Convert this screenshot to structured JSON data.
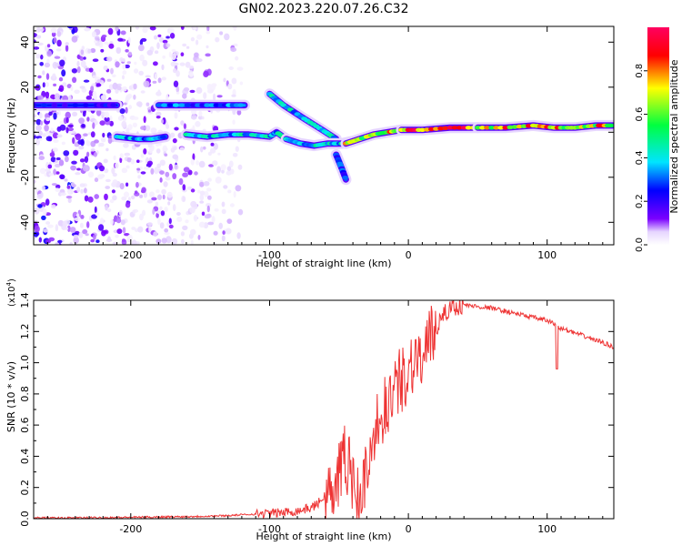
{
  "title": "GN02.2023.220.07.26.C32",
  "chart_data": [
    {
      "type": "heatmap",
      "xlabel": "Height of straight line (km)",
      "ylabel": "Frequency (Hz)",
      "xlim": [
        -270,
        148
      ],
      "ylim": [
        -50,
        47
      ],
      "xticks": [
        -200,
        -100,
        0,
        100
      ],
      "yticks": [
        -40,
        -20,
        0,
        20,
        40
      ],
      "colorbar": {
        "label": "Normalized spectral amplitude",
        "range": [
          0.0,
          1.0
        ],
        "ticks": [
          "0.0",
          "0.2",
          "0.4",
          "0.6",
          "0.8"
        ],
        "colormap": [
          "#ffffff",
          "#e6d5ff",
          "#7a00ff",
          "#0000ff",
          "#00e5ff",
          "#00ff40",
          "#ffff00",
          "#ff0000",
          "#ff0060"
        ]
      },
      "noise_region": {
        "x": [
          -270,
          -120
        ],
        "level": 0.15
      },
      "tracks": [
        {
          "x": [
            -270,
            -225,
            -210
          ],
          "y": [
            12,
            12,
            12
          ],
          "amplitude": 0.25
        },
        {
          "x": [
            -180,
            -155,
            -135,
            -118
          ],
          "y": [
            12,
            12,
            12,
            12
          ],
          "amplitude": 0.35
        },
        {
          "x": [
            -100,
            -90,
            -75,
            -62,
            -52
          ],
          "y": [
            17,
            12,
            6,
            1,
            -3
          ],
          "amplitude": 0.45
        },
        {
          "x": [
            -210,
            -195,
            -185,
            -175
          ],
          "y": [
            -2,
            -3,
            -3,
            -2
          ],
          "amplitude": 0.4
        },
        {
          "x": [
            -160,
            -145,
            -130,
            -115,
            -100,
            -95,
            -88
          ],
          "y": [
            -1,
            -2,
            -1,
            -1,
            -2,
            0,
            -3
          ],
          "amplitude": 0.45
        },
        {
          "x": [
            -88,
            -78,
            -68,
            -58,
            -48,
            -40
          ],
          "y": [
            -3,
            -5,
            -6,
            -5,
            -5,
            -4
          ],
          "amplitude": 0.45
        },
        {
          "x": [
            -52,
            -48,
            -45
          ],
          "y": [
            -10,
            -16,
            -21
          ],
          "amplitude": 0.3
        },
        {
          "x": [
            -45,
            -35,
            -25,
            -15,
            -5
          ],
          "y": [
            -5,
            -3,
            -1,
            0,
            1
          ],
          "amplitude": 0.8
        },
        {
          "x": [
            -5,
            10,
            30,
            50
          ],
          "y": [
            1,
            1,
            2,
            2
          ],
          "amplitude": 0.95
        },
        {
          "x": [
            50,
            70,
            90,
            105,
            120,
            135,
            148
          ],
          "y": [
            2,
            2,
            3,
            2,
            2,
            3,
            3
          ],
          "amplitude": 0.85
        }
      ]
    },
    {
      "type": "line",
      "xlabel": "Height of straight line (km)",
      "ylabel": "SNR (10 * v/v)",
      "multiplier": "(x10",
      "multiplier_exp": "4",
      "xlim": [
        -270,
        148
      ],
      "ylim": [
        0.0,
        1.4
      ],
      "xticks": [
        -200,
        -100,
        0,
        100
      ],
      "yticks": [
        0.0,
        0.2,
        0.4,
        0.6,
        0.8,
        1.0,
        1.2,
        1.4
      ],
      "ytick_labels": [
        "0.0",
        "0.2",
        "0.4",
        "0.6",
        "0.8",
        "1.0",
        "1.2",
        "1.4"
      ],
      "color": "#ee3333",
      "series": [
        {
          "x": [
            -270,
            -250,
            -230,
            -210,
            -190,
            -170,
            -150,
            -130,
            -120,
            -110,
            -100,
            -90,
            -80,
            -70,
            -65,
            -60,
            -55,
            -50,
            -45,
            -40,
            -35,
            -30,
            -25,
            -20,
            -15,
            -10,
            -5,
            0,
            5,
            10,
            15,
            20,
            25,
            30,
            40,
            50,
            60,
            70,
            80,
            90,
            100,
            105,
            110,
            120,
            130,
            140,
            148
          ],
          "y": [
            0.005,
            0.005,
            0.006,
            0.008,
            0.01,
            0.012,
            0.015,
            0.02,
            0.025,
            0.03,
            0.035,
            0.04,
            0.05,
            0.07,
            0.1,
            0.15,
            0.22,
            0.3,
            0.4,
            0.25,
            0.05,
            0.35,
            0.55,
            0.65,
            0.75,
            0.8,
            0.9,
            0.95,
            1.05,
            1.0,
            1.12,
            1.22,
            1.3,
            1.35,
            1.37,
            1.36,
            1.35,
            1.33,
            1.31,
            1.29,
            1.27,
            1.25,
            1.22,
            1.19,
            1.16,
            1.13,
            1.1
          ]
        }
      ]
    }
  ]
}
